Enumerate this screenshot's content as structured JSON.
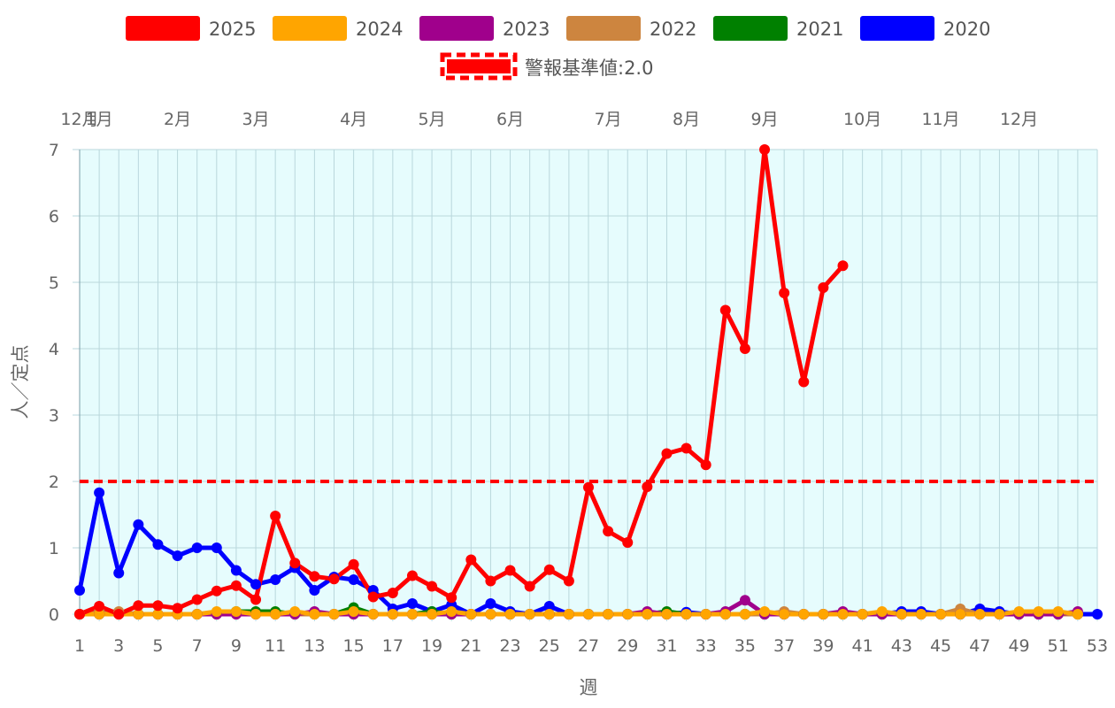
{
  "chart_data": {
    "type": "line",
    "xlabel": "週",
    "ylabel": "人／定点",
    "xlim": [
      1,
      53
    ],
    "ylim": [
      0,
      7
    ],
    "y_ticks": [
      0,
      1,
      2,
      3,
      4,
      5,
      6,
      7
    ],
    "x_ticks": [
      1,
      3,
      5,
      7,
      9,
      11,
      13,
      15,
      17,
      19,
      21,
      23,
      25,
      27,
      29,
      31,
      33,
      35,
      37,
      39,
      41,
      43,
      45,
      47,
      49,
      51,
      53
    ],
    "grid": true,
    "plot_background": "#e6fcfd",
    "month_labels": [
      {
        "label": "12月",
        "week": 1
      },
      {
        "label": "1月",
        "week": 2
      },
      {
        "label": "2月",
        "week": 6
      },
      {
        "label": "3月",
        "week": 10
      },
      {
        "label": "4月",
        "week": 15
      },
      {
        "label": "5月",
        "week": 19
      },
      {
        "label": "6月",
        "week": 23
      },
      {
        "label": "7月",
        "week": 28
      },
      {
        "label": "8月",
        "week": 32
      },
      {
        "label": "9月",
        "week": 36
      },
      {
        "label": "10月",
        "week": 41
      },
      {
        "label": "11月",
        "week": 45
      },
      {
        "label": "12月",
        "week": 49
      }
    ],
    "threshold": {
      "label": "警報基準値:2.0",
      "value": 2.0,
      "color": "#ff0000"
    },
    "legend_position": "top",
    "series": [
      {
        "name": "2020",
        "color": "#0000ff",
        "x": [
          1,
          2,
          3,
          4,
          5,
          6,
          7,
          8,
          9,
          10,
          11,
          12,
          13,
          14,
          15,
          16,
          17,
          18,
          19,
          20,
          21,
          22,
          23,
          24,
          25,
          26,
          27,
          28,
          29,
          30,
          31,
          32,
          33,
          34,
          35,
          36,
          37,
          38,
          39,
          40,
          41,
          42,
          43,
          44,
          45,
          46,
          47,
          48,
          49,
          50,
          51,
          52,
          53
        ],
        "values": [
          0.36,
          1.83,
          0.62,
          1.35,
          1.05,
          0.88,
          1.0,
          1.0,
          0.66,
          0.45,
          0.52,
          0.7,
          0.36,
          0.56,
          0.52,
          0.36,
          0.08,
          0.16,
          0.04,
          0.14,
          0.0,
          0.16,
          0.04,
          0.0,
          0.12,
          0.0,
          0.0,
          0.0,
          0.0,
          0.0,
          0.0,
          0.03,
          0.0,
          0.0,
          0.0,
          0.0,
          0.0,
          0.0,
          0.0,
          0.0,
          0.0,
          0.0,
          0.04,
          0.04,
          0.0,
          0.0,
          0.08,
          0.04,
          0.0,
          0.0,
          0.0,
          0.0,
          0.0
        ]
      },
      {
        "name": "2021",
        "color": "#008000",
        "x": [
          1,
          2,
          3,
          4,
          5,
          6,
          7,
          8,
          9,
          10,
          11,
          12,
          13,
          14,
          15,
          16,
          17,
          18,
          19,
          20,
          21,
          22,
          23,
          24,
          25,
          26,
          27,
          28,
          29,
          30,
          31,
          32,
          33,
          34,
          35,
          36,
          37,
          38,
          39,
          40,
          41,
          42,
          43,
          44,
          45,
          46,
          47,
          48,
          49,
          50,
          51,
          52
        ],
        "values": [
          0.0,
          0.0,
          0.0,
          0.0,
          0.0,
          0.0,
          0.0,
          0.0,
          0.04,
          0.04,
          0.04,
          0.0,
          0.0,
          0.0,
          0.1,
          0.0,
          0.0,
          0.0,
          0.04,
          0.0,
          0.0,
          0.0,
          0.0,
          0.0,
          0.0,
          0.0,
          0.0,
          0.0,
          0.0,
          0.0,
          0.04,
          0.0,
          0.0,
          0.0,
          0.0,
          0.0,
          0.0,
          0.0,
          0.0,
          0.0,
          0.0,
          0.0,
          0.0,
          0.0,
          0.0,
          0.0,
          0.0,
          0.0,
          0.0,
          0.0,
          0.0,
          0.0
        ]
      },
      {
        "name": "2022",
        "color": "#cd853f",
        "x": [
          1,
          2,
          3,
          4,
          5,
          6,
          7,
          8,
          9,
          10,
          11,
          12,
          13,
          14,
          15,
          16,
          17,
          18,
          19,
          20,
          21,
          22,
          23,
          24,
          25,
          26,
          27,
          28,
          29,
          30,
          31,
          32,
          33,
          34,
          35,
          36,
          37,
          38,
          39,
          40,
          41,
          42,
          43,
          44,
          45,
          46,
          47,
          48,
          49,
          50,
          51,
          52
        ],
        "values": [
          0.0,
          0.04,
          0.04,
          0.0,
          0.0,
          0.0,
          0.0,
          0.0,
          0.0,
          0.0,
          0.0,
          0.0,
          0.0,
          0.0,
          0.0,
          0.0,
          0.0,
          0.0,
          0.0,
          0.0,
          0.0,
          0.0,
          0.0,
          0.0,
          0.0,
          0.0,
          0.0,
          0.0,
          0.0,
          0.0,
          0.0,
          0.0,
          0.0,
          0.0,
          0.0,
          0.0,
          0.04,
          0.0,
          0.0,
          0.0,
          0.0,
          0.0,
          0.0,
          0.0,
          0.0,
          0.08,
          0.0,
          0.0,
          0.0,
          0.0,
          0.0,
          0.0
        ]
      },
      {
        "name": "2023",
        "color": "#a0008c",
        "x": [
          1,
          2,
          3,
          4,
          5,
          6,
          7,
          8,
          9,
          10,
          11,
          12,
          13,
          14,
          15,
          16,
          17,
          18,
          19,
          20,
          21,
          22,
          23,
          24,
          25,
          26,
          27,
          28,
          29,
          30,
          31,
          32,
          33,
          34,
          35,
          36,
          37,
          38,
          39,
          40,
          41,
          42,
          43,
          44,
          45,
          46,
          47,
          48,
          49,
          50,
          51,
          52
        ],
        "values": [
          0.0,
          0.0,
          0.0,
          0.0,
          0.0,
          0.0,
          0.0,
          0.0,
          0.0,
          0.0,
          0.0,
          0.0,
          0.04,
          0.0,
          0.0,
          0.0,
          0.0,
          0.0,
          0.0,
          0.0,
          0.0,
          0.0,
          0.0,
          0.0,
          0.0,
          0.0,
          0.0,
          0.0,
          0.0,
          0.04,
          0.0,
          0.0,
          0.0,
          0.04,
          0.21,
          0.0,
          0.0,
          0.0,
          0.0,
          0.04,
          0.0,
          0.0,
          0.0,
          0.0,
          0.0,
          0.0,
          0.0,
          0.0,
          0.0,
          0.0,
          0.0,
          0.04
        ]
      },
      {
        "name": "2024",
        "color": "#ffa500",
        "x": [
          1,
          2,
          3,
          4,
          5,
          6,
          7,
          8,
          9,
          10,
          11,
          12,
          13,
          14,
          15,
          16,
          17,
          18,
          19,
          20,
          21,
          22,
          23,
          24,
          25,
          26,
          27,
          28,
          29,
          30,
          31,
          32,
          33,
          34,
          35,
          36,
          37,
          38,
          39,
          40,
          41,
          42,
          43,
          44,
          45,
          46,
          47,
          48,
          49,
          50,
          51,
          52
        ],
        "values": [
          0.0,
          0.0,
          0.0,
          0.0,
          0.0,
          0.0,
          0.0,
          0.04,
          0.04,
          0.0,
          0.0,
          0.04,
          0.0,
          0.0,
          0.04,
          0.0,
          0.0,
          0.0,
          0.0,
          0.04,
          0.0,
          0.0,
          0.0,
          0.0,
          0.0,
          0.0,
          0.0,
          0.0,
          0.0,
          0.0,
          0.0,
          0.0,
          0.0,
          0.0,
          0.0,
          0.04,
          0.0,
          0.0,
          0.0,
          0.0,
          0.0,
          0.04,
          0.0,
          0.0,
          0.0,
          0.0,
          0.0,
          0.0,
          0.04,
          0.04,
          0.04,
          0.0
        ]
      },
      {
        "name": "2025",
        "color": "#ff0000",
        "x": [
          1,
          2,
          3,
          4,
          5,
          6,
          7,
          8,
          9,
          10,
          11,
          12,
          13,
          14,
          15,
          16,
          17,
          18,
          19,
          20,
          21,
          22,
          23,
          24,
          25,
          26,
          27,
          28,
          29,
          30,
          31,
          32,
          33,
          34,
          35,
          36,
          37,
          38,
          39,
          40
        ],
        "values": [
          0.0,
          0.12,
          0.0,
          0.13,
          0.13,
          0.09,
          0.22,
          0.35,
          0.43,
          0.22,
          1.48,
          0.77,
          0.57,
          0.53,
          0.75,
          0.26,
          0.32,
          0.58,
          0.42,
          0.25,
          0.82,
          0.5,
          0.66,
          0.42,
          0.67,
          0.5,
          1.91,
          1.25,
          1.08,
          1.92,
          2.42,
          2.5,
          2.25,
          4.58,
          4.0,
          7.0,
          4.84,
          3.5,
          4.92,
          5.25
        ]
      }
    ],
    "legend_order": [
      "2025",
      "2024",
      "2023",
      "2022",
      "2021",
      "2020"
    ]
  }
}
